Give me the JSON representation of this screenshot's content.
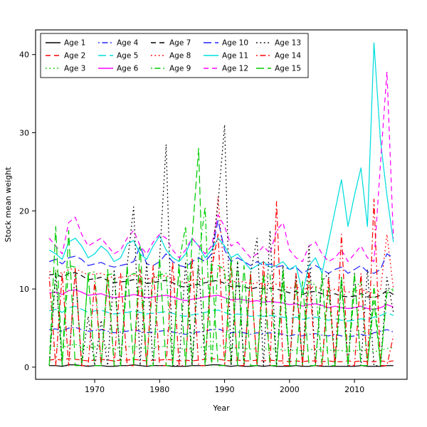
{
  "chart_data": {
    "type": "line",
    "title": "",
    "xlabel": "Year",
    "ylabel": "Stock mean weight",
    "grid": false,
    "x_range": [
      1960.9,
      2018.1
    ],
    "y_range": [
      -1.56,
      43.16
    ],
    "x_ticks": [
      1970,
      1980,
      1990,
      2000,
      2010
    ],
    "y_ticks": [
      0,
      10,
      20,
      30,
      40
    ],
    "legend": {
      "position": "top-left",
      "columns": 5,
      "frame": true
    },
    "years": [
      1963,
      1964,
      1965,
      1966,
      1967,
      1968,
      1969,
      1970,
      1971,
      1972,
      1973,
      1974,
      1975,
      1976,
      1977,
      1978,
      1979,
      1980,
      1981,
      1982,
      1983,
      1984,
      1985,
      1986,
      1987,
      1988,
      1989,
      1990,
      1991,
      1992,
      1993,
      1994,
      1995,
      1996,
      1997,
      1998,
      1999,
      2000,
      2001,
      2002,
      2003,
      2004,
      2005,
      2006,
      2007,
      2008,
      2009,
      2010,
      2011,
      2012,
      2013,
      2014,
      2015,
      2016
    ],
    "series": [
      {
        "name": "Age 1",
        "color": "#000000",
        "linestyle": "solid",
        "values": [
          0.2,
          0.2,
          0.1,
          0.3,
          0.3,
          0.2,
          0.1,
          0.2,
          0.2,
          0.1,
          0.1,
          0.2,
          0.2,
          0.3,
          0.2,
          0.1,
          0.2,
          0.2,
          0.2,
          0.1,
          0.1,
          0.1,
          0.2,
          0.2,
          0.2,
          0.3,
          0.3,
          0.2,
          0.1,
          0.2,
          0.1,
          0.1,
          0.2,
          0.1,
          0.2,
          0.1,
          0.1,
          0.1,
          0.2,
          0.1,
          0.1,
          0.2,
          0.1,
          0.1,
          0.1,
          0.1,
          0.1,
          0.1,
          0.2,
          0.1,
          0.1,
          0.1,
          0.2,
          0.2
        ]
      },
      {
        "name": "Age 2",
        "color": "#FF0000",
        "linestyle": "dashed",
        "values": [
          0.9,
          1.0,
          0.9,
          1.1,
          1.0,
          0.9,
          0.8,
          0.9,
          1.0,
          0.9,
          0.8,
          0.9,
          0.9,
          1.0,
          0.9,
          0.8,
          0.9,
          0.9,
          1.0,
          0.9,
          0.8,
          0.9,
          0.8,
          0.9,
          1.0,
          1.1,
          1.0,
          0.9,
          0.8,
          0.9,
          0.8,
          0.8,
          0.9,
          0.8,
          0.9,
          0.8,
          0.8,
          0.7,
          0.8,
          0.7,
          0.8,
          0.8,
          0.7,
          0.8,
          0.7,
          0.7,
          0.8,
          0.7,
          0.8,
          0.7,
          0.7,
          0.8,
          0.7,
          0.8
        ]
      },
      {
        "name": "Age 3",
        "color": "#00CC00",
        "linestyle": "dotted",
        "values": [
          2.6,
          2.7,
          2.5,
          2.8,
          2.9,
          2.7,
          2.5,
          2.6,
          2.7,
          2.5,
          2.4,
          2.5,
          2.6,
          2.7,
          2.5,
          2.4,
          2.5,
          2.6,
          2.7,
          2.5,
          2.4,
          2.3,
          2.4,
          2.5,
          2.6,
          2.7,
          2.8,
          2.6,
          2.4,
          2.5,
          2.4,
          2.3,
          2.4,
          2.3,
          2.4,
          2.3,
          2.2,
          2.1,
          2.2,
          2.1,
          2.2,
          2.3,
          2.2,
          2.1,
          2.2,
          2.1,
          2.0,
          2.1,
          2.2,
          2.1,
          2.0,
          2.1,
          2.4,
          2.5
        ]
      },
      {
        "name": "Age 4",
        "color": "#2222FF",
        "linestyle": "dotdash",
        "values": [
          4.8,
          4.9,
          4.6,
          5.0,
          5.1,
          4.8,
          4.6,
          4.7,
          4.8,
          4.6,
          4.4,
          4.5,
          4.6,
          4.8,
          4.6,
          4.4,
          4.5,
          4.6,
          4.7,
          4.5,
          4.3,
          4.2,
          4.4,
          4.5,
          4.6,
          4.8,
          4.9,
          4.6,
          4.4,
          4.5,
          4.4,
          4.2,
          4.4,
          4.3,
          4.4,
          4.3,
          4.2,
          4.0,
          4.2,
          4.0,
          4.2,
          4.3,
          4.1,
          4.0,
          4.2,
          4.0,
          3.9,
          4.0,
          4.2,
          4.0,
          4.4,
          4.6,
          4.8,
          4.5
        ]
      },
      {
        "name": "Age 5",
        "color": "#00DDDD",
        "linestyle": "longdash",
        "values": [
          7.2,
          7.4,
          7.0,
          7.6,
          7.8,
          7.4,
          7.0,
          7.2,
          7.3,
          7.0,
          6.8,
          6.9,
          7.0,
          7.2,
          7.0,
          6.8,
          6.9,
          7.0,
          7.1,
          6.9,
          6.6,
          6.5,
          6.7,
          6.8,
          7.0,
          7.2,
          7.3,
          7.0,
          6.7,
          6.8,
          6.7,
          6.5,
          6.6,
          6.5,
          6.6,
          6.5,
          6.4,
          6.2,
          6.4,
          6.1,
          6.3,
          6.4,
          6.2,
          6.0,
          6.2,
          6.0,
          5.9,
          6.0,
          6.2,
          6.0,
          6.4,
          6.6,
          7.0,
          6.6
        ]
      },
      {
        "name": "Age 6",
        "color": "#FF00FF",
        "linestyle": "solid",
        "values": [
          9.5,
          9.6,
          9.3,
          9.8,
          9.9,
          9.6,
          9.2,
          9.3,
          9.4,
          9.1,
          8.9,
          9.0,
          9.1,
          9.3,
          9.1,
          8.9,
          9.0,
          9.1,
          9.2,
          9.0,
          8.7,
          8.5,
          8.7,
          8.8,
          9.0,
          9.1,
          9.2,
          8.9,
          8.6,
          8.7,
          8.6,
          8.4,
          8.5,
          8.3,
          8.4,
          8.3,
          8.2,
          8.0,
          8.1,
          7.8,
          8.0,
          8.1,
          7.9,
          7.6,
          7.8,
          7.6,
          7.5,
          7.6,
          7.8,
          7.5,
          7.4,
          7.6,
          8.0,
          7.7
        ]
      },
      {
        "name": "Age 7",
        "color": "#000000",
        "linestyle": "dashed",
        "values": [
          11.8,
          11.9,
          11.5,
          12.0,
          12.1,
          11.7,
          11.2,
          11.3,
          11.5,
          11.1,
          10.8,
          10.9,
          11.0,
          11.2,
          11.0,
          10.7,
          10.8,
          11.0,
          11.1,
          10.8,
          10.4,
          10.2,
          10.5,
          10.6,
          10.8,
          11.0,
          11.1,
          10.7,
          10.3,
          10.4,
          10.3,
          10.0,
          10.2,
          10.0,
          10.1,
          10.0,
          9.8,
          9.5,
          9.7,
          9.3,
          9.6,
          9.7,
          9.4,
          9.1,
          9.4,
          9.1,
          9.0,
          9.1,
          9.4,
          9.0,
          8.9,
          9.2,
          9.8,
          9.3
        ]
      },
      {
        "name": "Age 8",
        "color": "#FF0000",
        "linestyle": "dotted",
        "values": [
          12.2,
          12.3,
          12.0,
          12.5,
          12.6,
          12.2,
          11.8,
          11.9,
          12.0,
          11.7,
          11.4,
          11.5,
          11.6,
          11.8,
          11.6,
          11.3,
          11.4,
          11.6,
          11.7,
          11.4,
          11.0,
          10.8,
          11.1,
          11.2,
          11.4,
          11.6,
          21.8,
          11.3,
          10.9,
          11.0,
          10.9,
          10.6,
          10.8,
          10.6,
          10.7,
          10.6,
          10.4,
          10.1,
          10.3,
          9.9,
          10.2,
          10.3,
          10.0,
          9.7,
          10.0,
          9.7,
          9.6,
          9.7,
          10.0,
          9.6,
          9.5,
          9.8,
          17.0,
          10.0
        ]
      },
      {
        "name": "Age 9",
        "color": "#00CC00",
        "linestyle": "dotdash",
        "values": [
          0.2,
          12.5,
          0.2,
          13.0,
          12.8,
          0.2,
          12.0,
          12.2,
          0.2,
          11.8,
          12.0,
          0.2,
          11.5,
          12.0,
          11.8,
          0.2,
          11.5,
          11.8,
          12.0,
          0.2,
          13.5,
          18.0,
          0.2,
          14.0,
          20.5,
          0.2,
          13.0,
          12.5,
          0.2,
          13.5,
          0.2,
          12.0,
          0.2,
          11.5,
          11.8,
          0.2,
          11.0,
          0.2,
          10.8,
          0.2,
          11.0,
          10.5,
          0.2,
          10.2,
          0.2,
          10.5,
          0.2,
          10.0,
          11.0,
          0.2,
          10.5,
          0.2,
          9.8,
          10.0
        ]
      },
      {
        "name": "Age 10",
        "color": "#2222FF",
        "linestyle": "longdash",
        "values": [
          13.5,
          13.8,
          13.2,
          14.0,
          14.2,
          13.8,
          13.0,
          13.2,
          13.4,
          13.0,
          12.8,
          13.0,
          13.2,
          13.5,
          15.5,
          13.2,
          13.0,
          13.5,
          14.5,
          13.5,
          13.0,
          12.8,
          13.5,
          14.0,
          13.5,
          14.5,
          18.8,
          15.0,
          13.5,
          14.0,
          13.5,
          13.0,
          13.5,
          13.0,
          13.2,
          12.8,
          13.0,
          12.5,
          12.8,
          12.0,
          12.5,
          13.0,
          12.5,
          12.0,
          12.5,
          12.8,
          12.0,
          12.5,
          13.0,
          12.2,
          12.0,
          12.5,
          14.5,
          14.0
        ]
      },
      {
        "name": "Age 11",
        "color": "#00DDDD",
        "linestyle": "solid",
        "values": [
          15.0,
          14.5,
          13.8,
          16.0,
          16.5,
          15.5,
          14.0,
          14.5,
          15.5,
          14.8,
          13.5,
          14.0,
          15.8,
          16.2,
          14.5,
          13.8,
          15.5,
          16.8,
          15.0,
          14.0,
          13.5,
          14.5,
          16.5,
          15.5,
          14.0,
          15.0,
          16.5,
          15.5,
          14.0,
          14.5,
          13.5,
          12.5,
          13.0,
          13.5,
          12.8,
          13.0,
          13.5,
          12.5,
          13.0,
          9.5,
          13.0,
          14.0,
          12.0,
          16.0,
          20.0,
          24.0,
          18.0,
          22.0,
          25.5,
          18.0,
          41.5,
          29.0,
          22.0,
          16.0
        ]
      },
      {
        "name": "Age 12",
        "color": "#FF00FF",
        "linestyle": "dashed",
        "values": [
          16.5,
          15.5,
          14.5,
          18.5,
          19.2,
          17.0,
          15.5,
          16.0,
          16.5,
          15.5,
          14.5,
          15.0,
          16.5,
          17.5,
          15.5,
          14.5,
          16.0,
          17.0,
          16.5,
          15.0,
          14.0,
          15.0,
          16.5,
          15.5,
          14.5,
          15.5,
          19.5,
          18.0,
          15.5,
          16.0,
          15.0,
          14.0,
          14.5,
          15.5,
          14.5,
          17.5,
          18.5,
          15.0,
          14.0,
          13.5,
          15.5,
          16.0,
          14.5,
          13.5,
          14.0,
          15.0,
          13.5,
          14.5,
          15.5,
          14.0,
          13.5,
          26.0,
          37.8,
          16.5
        ]
      },
      {
        "name": "Age 13",
        "color": "#000000",
        "linestyle": "dotted",
        "values": [
          0.2,
          12.0,
          0.2,
          0.2,
          12.5,
          0.2,
          6.5,
          0.2,
          6.0,
          0.2,
          12.5,
          0.2,
          13.0,
          20.5,
          0.2,
          13.5,
          0.2,
          14.0,
          28.5,
          0.2,
          0.2,
          13.5,
          0.2,
          13.0,
          0.2,
          14.0,
          21.0,
          31.0,
          0.2,
          13.5,
          0.2,
          12.0,
          16.5,
          0.2,
          17.5,
          0.2,
          13.0,
          0.2,
          12.0,
          0.2,
          15.5,
          0.2,
          11.0,
          12.0,
          0.2,
          11.5,
          0.2,
          12.0,
          0.2,
          12.5,
          0.2,
          0.2,
          11.5,
          7.0
        ]
      },
      {
        "name": "Age 14",
        "color": "#FF0000",
        "linestyle": "dotdash",
        "values": [
          11.5,
          0.2,
          12.0,
          0.2,
          12.5,
          0.2,
          0.2,
          11.0,
          0.2,
          11.5,
          0.2,
          12.0,
          0.2,
          0.2,
          12.5,
          0.2,
          13.0,
          0.2,
          0.2,
          13.5,
          0.2,
          0.2,
          14.0,
          0.2,
          0.2,
          12.5,
          17.0,
          0.2,
          13.0,
          0.2,
          0.2,
          12.0,
          0.2,
          13.5,
          0.2,
          21.2,
          0.2,
          0.2,
          12.0,
          0.2,
          12.5,
          0.2,
          0.2,
          11.5,
          0.2,
          17.0,
          0.2,
          0.2,
          12.0,
          0.2,
          21.5,
          0.2,
          0.2,
          4.0
        ]
      },
      {
        "name": "Age 15",
        "color": "#00CC00",
        "linestyle": "longdash",
        "values": [
          0.2,
          18.0,
          0.2,
          17.5,
          0.2,
          0.2,
          12.0,
          0.2,
          0.2,
          12.5,
          0.2,
          0.2,
          13.0,
          0.2,
          15.5,
          0.2,
          0.2,
          14.0,
          0.2,
          0.2,
          13.0,
          0.2,
          16.5,
          28.0,
          0.2,
          13.5,
          0.2,
          0.2,
          14.0,
          0.2,
          13.0,
          0.2,
          0.2,
          12.0,
          0.2,
          0.2,
          12.5,
          0.2,
          0.2,
          11.0,
          0.2,
          0.2,
          12.0,
          0.2,
          0.2,
          11.5,
          0.2,
          12.0,
          0.2,
          0.2,
          8.5,
          0.2,
          9.5,
          9.8
        ]
      }
    ]
  }
}
